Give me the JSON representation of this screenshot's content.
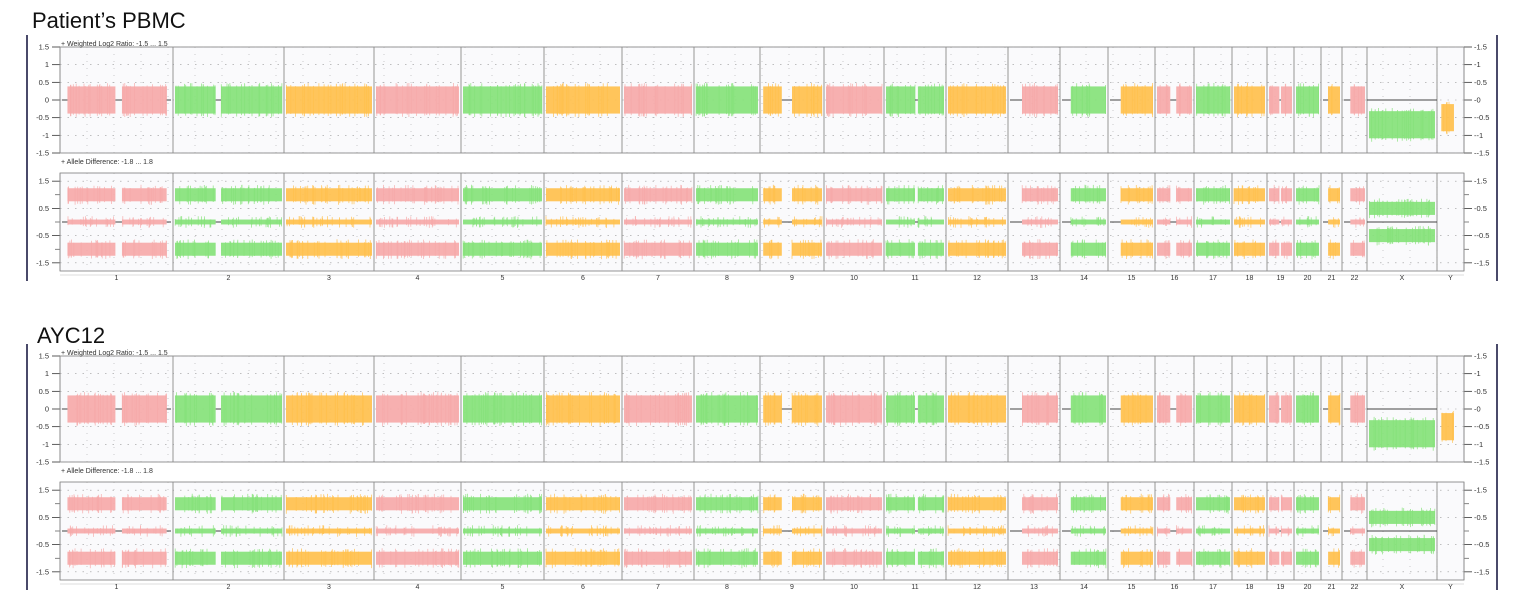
{
  "colors": {
    "pink": "#f6a9a9",
    "green": "#86e27a",
    "orange": "#ffc04d",
    "panel_bg": "#fafafc",
    "grid": "#9a9a9a",
    "frame": "#7a7a7a",
    "left_border": "#4a4a6a"
  },
  "chromosomes": [
    {
      "label": "1",
      "color": "pink",
      "segments": [
        [
          0.05,
          0.49
        ],
        [
          0.55,
          0.96
        ]
      ]
    },
    {
      "label": "2",
      "color": "green",
      "segments": [
        [
          0.0,
          0.38
        ],
        [
          0.43,
          1.0
        ]
      ]
    },
    {
      "label": "3",
      "color": "orange",
      "segments": [
        [
          0.0,
          1.0
        ]
      ]
    },
    {
      "label": "4",
      "color": "pink",
      "segments": [
        [
          0.0,
          1.0
        ]
      ]
    },
    {
      "label": "5",
      "color": "green",
      "segments": [
        [
          0.0,
          1.0
        ]
      ]
    },
    {
      "label": "6",
      "color": "orange",
      "segments": [
        [
          0.0,
          1.0
        ]
      ]
    },
    {
      "label": "7",
      "color": "pink",
      "segments": [
        [
          0.0,
          1.0
        ]
      ]
    },
    {
      "label": "8",
      "color": "green",
      "segments": [
        [
          0.0,
          1.0
        ]
      ]
    },
    {
      "label": "9",
      "color": "orange",
      "segments": [
        [
          0.02,
          0.33
        ],
        [
          0.5,
          1.0
        ]
      ]
    },
    {
      "label": "10",
      "color": "pink",
      "segments": [
        [
          0.0,
          1.0
        ]
      ]
    },
    {
      "label": "11",
      "color": "green",
      "segments": [
        [
          0.0,
          0.5
        ],
        [
          0.55,
          1.0
        ]
      ]
    },
    {
      "label": "12",
      "color": "orange",
      "segments": [
        [
          0.0,
          1.0
        ]
      ]
    },
    {
      "label": "13",
      "color": "pink",
      "segments": [
        [
          0.25,
          1.0
        ]
      ]
    },
    {
      "label": "14",
      "color": "green",
      "segments": [
        [
          0.2,
          1.0
        ]
      ]
    },
    {
      "label": "15",
      "color": "orange",
      "segments": [
        [
          0.25,
          1.0
        ]
      ]
    },
    {
      "label": "16",
      "color": "pink",
      "segments": [
        [
          0.0,
          0.38
        ],
        [
          0.55,
          1.0
        ]
      ]
    },
    {
      "label": "17",
      "color": "green",
      "segments": [
        [
          0.0,
          1.0
        ]
      ]
    },
    {
      "label": "18",
      "color": "orange",
      "segments": [
        [
          0.0,
          1.0
        ]
      ]
    },
    {
      "label": "19",
      "color": "pink",
      "segments": [
        [
          0.0,
          0.45
        ],
        [
          0.52,
          1.0
        ]
      ]
    },
    {
      "label": "20",
      "color": "green",
      "segments": [
        [
          0.0,
          1.0
        ]
      ]
    },
    {
      "label": "21",
      "color": "orange",
      "segments": [
        [
          0.3,
          1.0
        ]
      ]
    },
    {
      "label": "22",
      "color": "pink",
      "segments": [
        [
          0.3,
          1.0
        ]
      ]
    },
    {
      "label": "X",
      "color": "green",
      "segments": [
        [
          0.0,
          1.0
        ]
      ]
    },
    {
      "label": "Y",
      "color": "orange",
      "segments": [
        [
          0.1,
          0.65
        ]
      ]
    }
  ],
  "panels": [
    {
      "sample_title": "Patient’s PBMC",
      "chart_data": {
        "type": "scatter",
        "tracks": [
          {
            "name": "Weighted Log2 Ratio: -1.5 ... 1.5",
            "ylim": [
              -1.5,
              1.5
            ],
            "left_ticks": [
              "1.5",
              "1",
              "0.5",
              "0",
              "-0.5",
              "-1",
              "-1.5"
            ],
            "right_ticks": [
              "1.5",
              "1",
              "0.5",
              "0",
              "-0.5",
              "-1",
              "-1.5"
            ],
            "bands": {
              "autosomes": [
                0
              ],
              "X": [
                -0.7
              ],
              "Y": [
                -0.5
              ]
            }
          },
          {
            "name": "Allele Difference: -1.8 ... 1.8",
            "ylim": [
              -1.8,
              1.8
            ],
            "left_ticks": [
              "1.5",
              "0.5",
              "-0.5",
              "-1.5"
            ],
            "right_ticks": [
              "1.5",
              "0.5",
              "-0.5",
              "-1.5"
            ],
            "bands": {
              "autosomes": [
                1,
                0,
                -1
              ],
              "X": [
                0.5,
                -0.5
              ],
              "Y": []
            }
          }
        ]
      }
    },
    {
      "sample_title": "AYC12",
      "chart_data": {
        "type": "scatter",
        "tracks": [
          {
            "name": "Weighted Log2 Ratio: -1.5 ... 1.5",
            "ylim": [
              -1.5,
              1.5
            ],
            "left_ticks": [
              "1.5",
              "1",
              "0.5",
              "0",
              "-0.5",
              "-1",
              "-1.5"
            ],
            "right_ticks": [
              "1.5",
              "1",
              "0.5",
              "0",
              "-0.5",
              "-1",
              "-1.5"
            ],
            "bands": {
              "autosomes": [
                0
              ],
              "X": [
                -0.7
              ],
              "Y": [
                -0.5
              ]
            }
          },
          {
            "name": "Allele Difference: -1.8 ... 1.8",
            "ylim": [
              -1.8,
              1.8
            ],
            "left_ticks": [
              "1.5",
              "0.5",
              "-0.5",
              "-1.5"
            ],
            "right_ticks": [
              "1.5",
              "0.5",
              "-0.5",
              "-1.5"
            ],
            "bands": {
              "autosomes": [
                1,
                0,
                -1
              ],
              "X": [
                0.5,
                -0.5
              ],
              "Y": []
            }
          }
        ]
      }
    }
  ]
}
